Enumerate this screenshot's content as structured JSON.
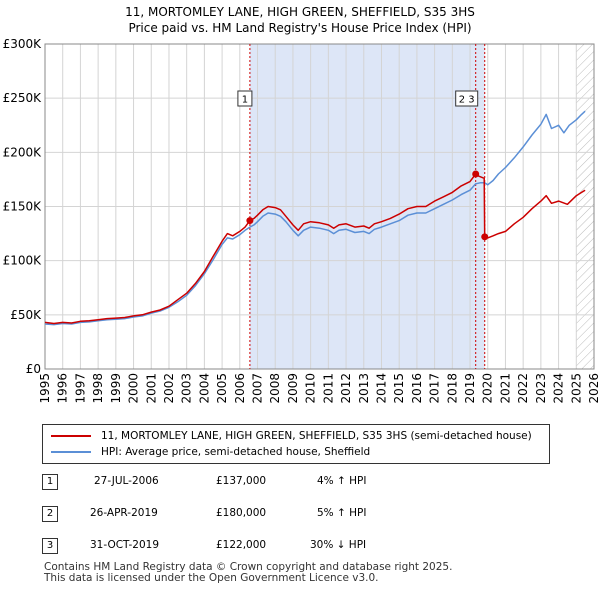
{
  "title_line1": "11, MORTOMLEY LANE, HIGH GREEN, SHEFFIELD, S35 3HS",
  "title_line2": "Price paid vs. HM Land Registry's House Price Index (HPI)",
  "colors": {
    "red": "#cc0000",
    "blue": "#5b8fd6",
    "shade": "#dde6f7",
    "grid": "#d4d4d4"
  },
  "chart_data": {
    "type": "line",
    "x_range": [
      1995,
      2026
    ],
    "ylim": [
      0,
      300000
    ],
    "y_ticks": [
      0,
      50000,
      100000,
      150000,
      200000,
      250000,
      300000
    ],
    "y_tick_labels": [
      "£0",
      "£50K",
      "£100K",
      "£150K",
      "£200K",
      "£250K",
      "£300K"
    ],
    "x_ticks": [
      1995,
      1996,
      1997,
      1998,
      1999,
      2000,
      2001,
      2002,
      2003,
      2004,
      2005,
      2006,
      2007,
      2008,
      2009,
      2010,
      2011,
      2012,
      2013,
      2014,
      2015,
      2016,
      2017,
      2018,
      2019,
      2020,
      2021,
      2022,
      2023,
      2024,
      2025,
      2026
    ],
    "shaded_range": [
      2006.57,
      2019.83
    ],
    "hatched_from": 2025.0,
    "series": [
      {
        "name": "11, MORTOMLEY LANE, HIGH GREEN, SHEFFIELD, S35 3HS (semi-detached house)",
        "color": "#cc0000",
        "points": [
          [
            1995.0,
            43000
          ],
          [
            1995.5,
            42000
          ],
          [
            1996.0,
            43000
          ],
          [
            1996.5,
            42500
          ],
          [
            1997.0,
            44000
          ],
          [
            1997.5,
            44500
          ],
          [
            1998.0,
            45500
          ],
          [
            1998.5,
            46500
          ],
          [
            1999.0,
            47000
          ],
          [
            1999.5,
            47500
          ],
          [
            2000.0,
            49000
          ],
          [
            2000.5,
            50000
          ],
          [
            2001.0,
            52500
          ],
          [
            2001.5,
            54500
          ],
          [
            2002.0,
            58000
          ],
          [
            2002.5,
            64000
          ],
          [
            2003.0,
            70000
          ],
          [
            2003.5,
            79000
          ],
          [
            2004.0,
            90000
          ],
          [
            2004.5,
            104000
          ],
          [
            2005.0,
            118000
          ],
          [
            2005.3,
            125000
          ],
          [
            2005.6,
            123000
          ],
          [
            2006.0,
            127000
          ],
          [
            2006.3,
            131000
          ],
          [
            2006.57,
            137000
          ],
          [
            2006.8,
            139000
          ],
          [
            2007.0,
            142000
          ],
          [
            2007.3,
            147000
          ],
          [
            2007.6,
            150000
          ],
          [
            2008.0,
            149000
          ],
          [
            2008.3,
            147000
          ],
          [
            2008.6,
            141000
          ],
          [
            2009.0,
            133000
          ],
          [
            2009.3,
            128000
          ],
          [
            2009.6,
            134000
          ],
          [
            2010.0,
            136000
          ],
          [
            2010.5,
            135000
          ],
          [
            2011.0,
            133000
          ],
          [
            2011.3,
            130000
          ],
          [
            2011.6,
            133000
          ],
          [
            2012.0,
            134000
          ],
          [
            2012.5,
            131000
          ],
          [
            2013.0,
            132000
          ],
          [
            2013.3,
            130000
          ],
          [
            2013.6,
            134000
          ],
          [
            2014.0,
            136000
          ],
          [
            2014.5,
            139000
          ],
          [
            2015.0,
            143000
          ],
          [
            2015.5,
            148000
          ],
          [
            2016.0,
            150000
          ],
          [
            2016.5,
            150000
          ],
          [
            2017.0,
            155000
          ],
          [
            2017.5,
            159000
          ],
          [
            2018.0,
            163000
          ],
          [
            2018.5,
            169000
          ],
          [
            2019.0,
            173000
          ],
          [
            2019.32,
            180000
          ],
          [
            2019.5,
            178000
          ],
          [
            2019.8,
            176000
          ],
          [
            2019.83,
            122000
          ],
          [
            2020.0,
            121000
          ],
          [
            2020.3,
            123000
          ],
          [
            2020.6,
            125000
          ],
          [
            2021.0,
            127000
          ],
          [
            2021.5,
            134000
          ],
          [
            2022.0,
            140000
          ],
          [
            2022.5,
            148000
          ],
          [
            2023.0,
            155000
          ],
          [
            2023.3,
            160000
          ],
          [
            2023.6,
            153000
          ],
          [
            2024.0,
            155000
          ],
          [
            2024.5,
            152000
          ],
          [
            2025.0,
            160000
          ],
          [
            2025.3,
            163000
          ],
          [
            2025.5,
            165000
          ]
        ]
      },
      {
        "name": "HPI: Average price, semi-detached house, Sheffield",
        "color": "#5b8fd6",
        "points": [
          [
            1995.0,
            41500
          ],
          [
            1995.5,
            41000
          ],
          [
            1996.0,
            42000
          ],
          [
            1996.5,
            41500
          ],
          [
            1997.0,
            43000
          ],
          [
            1997.5,
            43500
          ],
          [
            1998.0,
            44500
          ],
          [
            1998.5,
            45500
          ],
          [
            1999.0,
            46000
          ],
          [
            1999.5,
            46500
          ],
          [
            2000.0,
            48000
          ],
          [
            2000.5,
            49000
          ],
          [
            2001.0,
            51500
          ],
          [
            2001.5,
            53500
          ],
          [
            2002.0,
            57000
          ],
          [
            2002.5,
            62000
          ],
          [
            2003.0,
            68000
          ],
          [
            2003.5,
            77000
          ],
          [
            2004.0,
            88000
          ],
          [
            2004.5,
            101000
          ],
          [
            2005.0,
            115000
          ],
          [
            2005.3,
            121000
          ],
          [
            2005.6,
            120000
          ],
          [
            2006.0,
            124000
          ],
          [
            2006.3,
            128000
          ],
          [
            2006.57,
            131000
          ],
          [
            2006.8,
            133000
          ],
          [
            2007.0,
            136000
          ],
          [
            2007.3,
            141000
          ],
          [
            2007.6,
            144000
          ],
          [
            2008.0,
            143000
          ],
          [
            2008.3,
            141000
          ],
          [
            2008.6,
            136000
          ],
          [
            2009.0,
            128000
          ],
          [
            2009.3,
            123000
          ],
          [
            2009.6,
            128000
          ],
          [
            2010.0,
            131000
          ],
          [
            2010.5,
            130000
          ],
          [
            2011.0,
            128000
          ],
          [
            2011.3,
            125000
          ],
          [
            2011.6,
            128000
          ],
          [
            2012.0,
            129000
          ],
          [
            2012.5,
            126000
          ],
          [
            2013.0,
            127000
          ],
          [
            2013.3,
            125000
          ],
          [
            2013.6,
            129000
          ],
          [
            2014.0,
            131000
          ],
          [
            2014.5,
            134000
          ],
          [
            2015.0,
            137000
          ],
          [
            2015.5,
            142000
          ],
          [
            2016.0,
            144000
          ],
          [
            2016.5,
            144000
          ],
          [
            2017.0,
            148000
          ],
          [
            2017.5,
            152000
          ],
          [
            2018.0,
            156000
          ],
          [
            2018.5,
            161000
          ],
          [
            2019.0,
            165000
          ],
          [
            2019.32,
            171000
          ],
          [
            2019.6,
            172000
          ],
          [
            2019.83,
            172000
          ],
          [
            2020.0,
            170000
          ],
          [
            2020.3,
            174000
          ],
          [
            2020.6,
            180000
          ],
          [
            2021.0,
            186000
          ],
          [
            2021.5,
            195000
          ],
          [
            2022.0,
            205000
          ],
          [
            2022.5,
            216000
          ],
          [
            2023.0,
            226000
          ],
          [
            2023.3,
            235000
          ],
          [
            2023.6,
            222000
          ],
          [
            2024.0,
            225000
          ],
          [
            2024.3,
            218000
          ],
          [
            2024.6,
            225000
          ],
          [
            2025.0,
            230000
          ],
          [
            2025.3,
            235000
          ],
          [
            2025.5,
            238000
          ]
        ]
      }
    ],
    "sales": [
      {
        "label": "1",
        "x": 2006.57,
        "price": 137000,
        "box_label": "1"
      },
      {
        "label": "2",
        "x": 2019.32,
        "price": 180000,
        "box_label": "2 3"
      },
      {
        "label": "3",
        "x": 2019.83,
        "price": 122000,
        "box_label": ""
      }
    ]
  },
  "legend": {
    "property": "11, MORTOMLEY LANE, HIGH GREEN, SHEFFIELD, S35 3HS (semi-detached house)",
    "hpi": "HPI: Average price, semi-detached house, Sheffield"
  },
  "sales_table": [
    {
      "num": "1",
      "date": "27-JUL-2006",
      "price": "£137,000",
      "hpi": "4% ↑ HPI"
    },
    {
      "num": "2",
      "date": "26-APR-2019",
      "price": "£180,000",
      "hpi": "5% ↑ HPI"
    },
    {
      "num": "3",
      "date": "31-OCT-2019",
      "price": "£122,000",
      "hpi": "30% ↓ HPI"
    }
  ],
  "footer": {
    "line1": "Contains HM Land Registry data © Crown copyright and database right 2025.",
    "line2": "This data is licensed under the Open Government Licence v3.0."
  }
}
